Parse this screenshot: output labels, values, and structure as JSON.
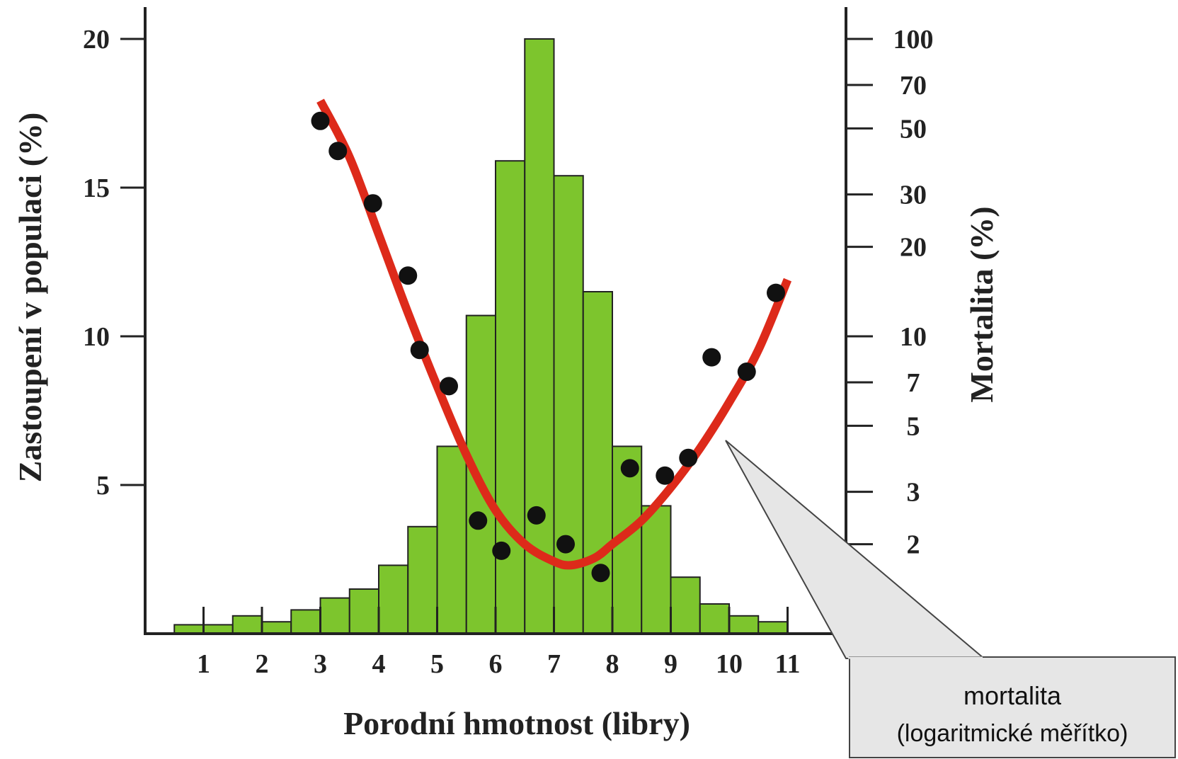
{
  "chart_data": {
    "type": "bar",
    "xlabel": "Porodní hmotnost (libry)",
    "ylabel": "Zastoupení v populaci (%)",
    "y2label": "Mortalita (%)",
    "x_ticks": [
      1,
      2,
      3,
      4,
      5,
      6,
      7,
      8,
      9,
      10,
      11
    ],
    "y_ticks": [
      5,
      10,
      15,
      20
    ],
    "y2_ticks": [
      2,
      3,
      5,
      7,
      10,
      20,
      30,
      50,
      70,
      100
    ],
    "y2_scale": "log",
    "xlim": [
      0,
      12
    ],
    "ylim": [
      0,
      20
    ],
    "y2lim": [
      1,
      100
    ],
    "histogram": {
      "bin_edges": [
        0.5,
        1.0,
        1.5,
        2.0,
        2.5,
        3.0,
        3.5,
        4.0,
        4.5,
        5.0,
        5.5,
        6.0,
        6.5,
        7.0,
        7.5,
        8.0,
        8.5,
        9.0,
        9.5,
        10.0,
        10.5,
        11.0
      ],
      "values": [
        0.3,
        0.3,
        0.6,
        0.4,
        0.8,
        1.2,
        1.5,
        2.3,
        3.6,
        6.3,
        10.7,
        15.9,
        20.0,
        15.4,
        11.5,
        6.3,
        4.3,
        1.9,
        1.0,
        0.6,
        0.4
      ],
      "color": "#7DC52D"
    },
    "mortality_points": {
      "x": [
        3.0,
        3.3,
        3.9,
        4.5,
        4.7,
        5.2,
        5.7,
        6.1,
        6.7,
        7.2,
        7.8,
        8.3,
        8.9,
        9.3,
        9.7,
        10.3,
        10.8
      ],
      "y": [
        53,
        42,
        28,
        16,
        9,
        6.8,
        2.4,
        1.9,
        2.5,
        2.0,
        1.6,
        3.6,
        3.4,
        3.9,
        8.5,
        7.6,
        14
      ],
      "color": "#111111"
    },
    "mortality_curve": {
      "x": [
        3.0,
        3.5,
        4.0,
        4.5,
        5.0,
        5.5,
        6.0,
        6.5,
        7.0,
        7.3,
        7.7,
        8.0,
        8.5,
        9.0,
        9.5,
        10.0,
        10.5,
        11.0
      ],
      "y": [
        62,
        40,
        22,
        12,
        6.8,
        4.0,
        2.6,
        2.0,
        1.75,
        1.7,
        1.8,
        2.0,
        2.4,
        3.1,
        4.2,
        6.0,
        9.0,
        15.5
      ],
      "color": "#DD2A1A"
    },
    "callout": {
      "line1": "mortalita",
      "line2": "(logaritmické měřítko)"
    }
  }
}
